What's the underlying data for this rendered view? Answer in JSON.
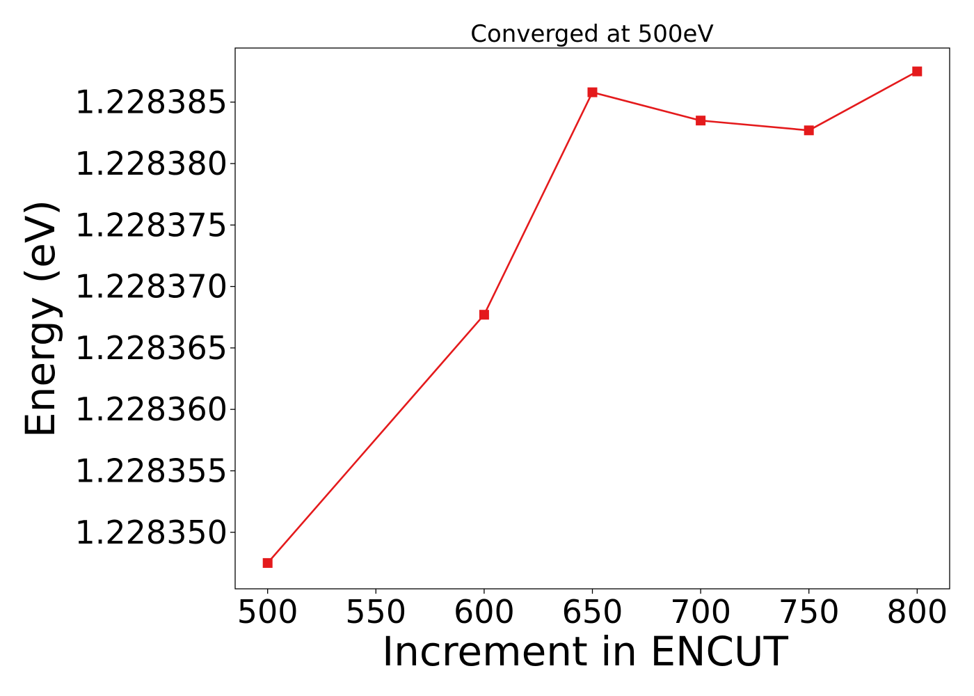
{
  "chart_data": {
    "type": "line",
    "title": "Converged at 500eV",
    "xlabel": "Increment in ENCUT",
    "ylabel": "Energy (eV)",
    "x": [
      500,
      600,
      650,
      700,
      750,
      800
    ],
    "series": [
      {
        "values": [
          1.2283475,
          1.2283677,
          1.2283858,
          1.2283835,
          1.2283827,
          1.2283875
        ],
        "color": "#e41a1c",
        "marker": "square"
      }
    ],
    "xlim": [
      485,
      815
    ],
    "ylim": [
      1.2283454,
      1.2283894
    ],
    "xticks": [
      500,
      550,
      600,
      650,
      700,
      750,
      800
    ],
    "yticks": [
      1.22835,
      1.228355,
      1.22836,
      1.228365,
      1.22837,
      1.228375,
      1.22838,
      1.228385
    ],
    "xtick_labels": [
      "500",
      "550",
      "600",
      "650",
      "700",
      "750",
      "800"
    ],
    "ytick_labels": [
      "1.228350",
      "1.228355",
      "1.228360",
      "1.228365",
      "1.228370",
      "1.228375",
      "1.228380",
      "1.228385"
    ],
    "grid": false,
    "legend": "none"
  }
}
